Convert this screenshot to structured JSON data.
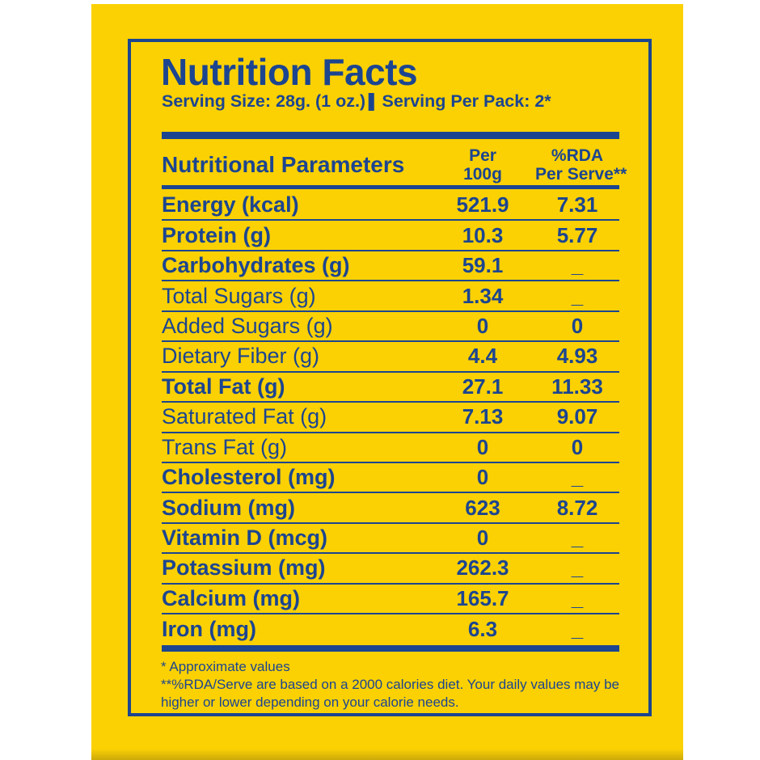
{
  "title": "Nutrition Facts",
  "serving": {
    "size": "Serving Size: 28g. (1 oz.)",
    "separator": "|",
    "per_pack": "Serving Per Pack: 2*"
  },
  "table": {
    "header": {
      "parameters": "Nutritional Parameters",
      "col_per_100g": [
        "Per",
        "100g"
      ],
      "col_rda": [
        "%RDA",
        "Per Serve**"
      ]
    },
    "rows": [
      {
        "label": "Energy (kcal)",
        "per100g": "521.9",
        "rda": "7.31",
        "level": "main"
      },
      {
        "label": "Protein (g)",
        "per100g": "10.3",
        "rda": "5.77",
        "level": "main"
      },
      {
        "label": "Carbohydrates (g)",
        "per100g": "59.1",
        "rda": "_",
        "level": "main"
      },
      {
        "label": "Total Sugars (g)",
        "per100g": "1.34",
        "rda": "_",
        "level": "sub"
      },
      {
        "label": "Added Sugars (g)",
        "per100g": "0",
        "rda": "0",
        "level": "sub"
      },
      {
        "label": "Dietary Fiber (g)",
        "per100g": "4.4",
        "rda": "4.93",
        "level": "sub"
      },
      {
        "label": "Total Fat (g)",
        "per100g": "27.1",
        "rda": "11.33",
        "level": "main"
      },
      {
        "label": "Saturated Fat (g)",
        "per100g": "7.13",
        "rda": "9.07",
        "level": "sub"
      },
      {
        "label": "Trans Fat (g)",
        "per100g": "0",
        "rda": "0",
        "level": "sub"
      },
      {
        "label": "Cholesterol (mg)",
        "per100g": "0",
        "rda": "_",
        "level": "main"
      },
      {
        "label": "Sodium (mg)",
        "per100g": "623",
        "rda": "8.72",
        "level": "main"
      },
      {
        "label": "Vitamin D (mcg)",
        "per100g": "0",
        "rda": "_",
        "level": "main"
      },
      {
        "label": "Potassium (mg)",
        "per100g": "262.3",
        "rda": "_",
        "level": "main"
      },
      {
        "label": "Calcium (mg)",
        "per100g": "165.7",
        "rda": "_",
        "level": "main"
      },
      {
        "label": "Iron (mg)",
        "per100g": "6.3",
        "rda": "_",
        "level": "main"
      }
    ]
  },
  "footnotes": {
    "approximate": "* Approximate values",
    "rda_note": "**%RDA/Serve are based on a 2000 calories diet. Your daily values may be higher or lower depending on your calorie needs."
  },
  "colors": {
    "panel_yellow": "#FBD104",
    "ink_blue": "#1C4590",
    "background_white": "#FFFFFF"
  }
}
